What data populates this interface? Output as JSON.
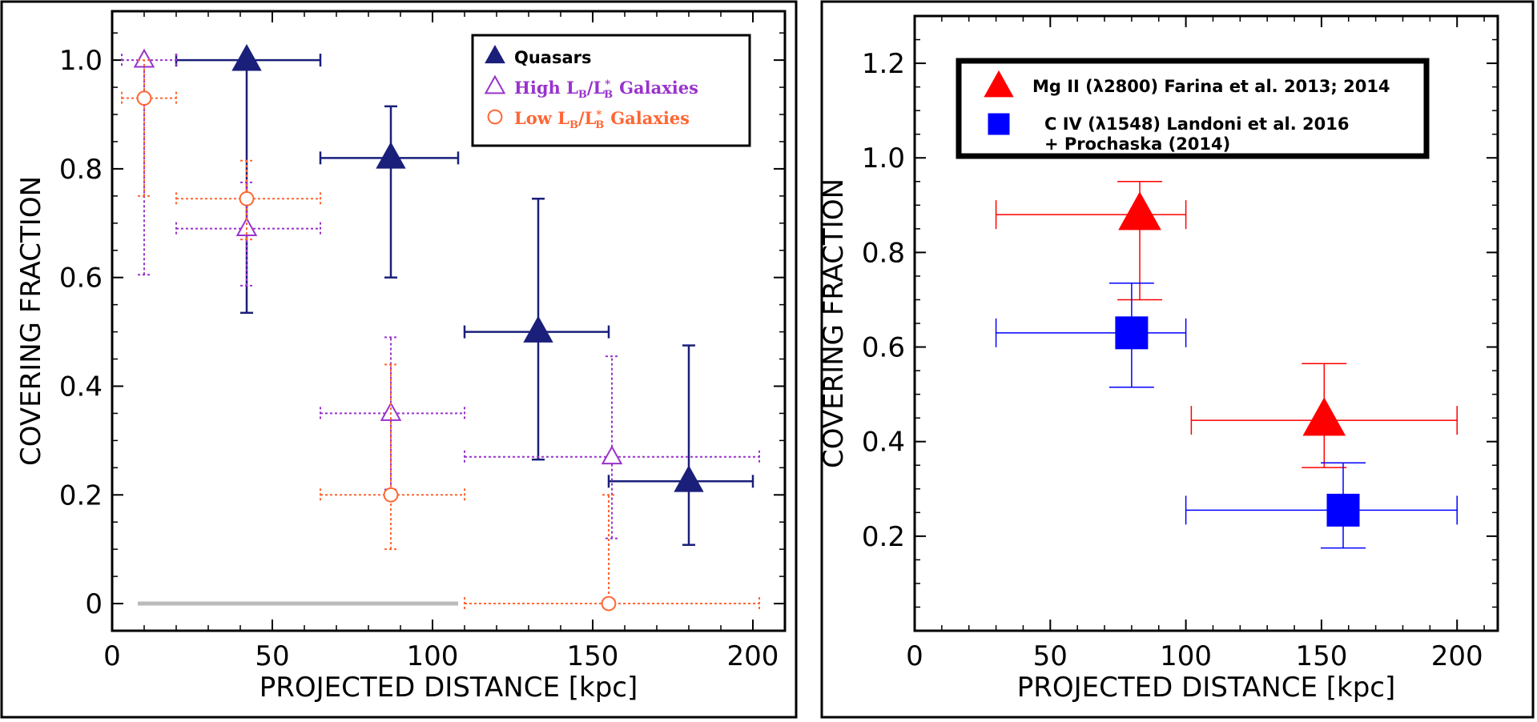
{
  "chart_data": [
    {
      "type": "scatter",
      "panel": "left",
      "xlabel": "PROJECTED DISTANCE [kpc]",
      "ylabel": "COVERING FRACTION",
      "xlim": [
        0,
        210
      ],
      "ylim": [
        -0.05,
        1.09
      ],
      "xticks": [
        0,
        50,
        100,
        150,
        200
      ],
      "xtick_labels": [
        "0",
        "50",
        "100",
        "150",
        "200"
      ],
      "yticks": [
        0,
        0.2,
        0.4,
        0.6,
        0.8,
        1.0
      ],
      "ytick_labels": [
        "0",
        "0.2",
        "0.4",
        "0.6",
        "0.8",
        "1.0"
      ],
      "legend_position": "top-right",
      "series": [
        {
          "name": "Quasars",
          "legend_label": "Quasars",
          "marker": "triangle-filled",
          "color": "#1a1f7a",
          "points": [
            {
              "x": 42,
              "y": 1.0,
              "xerr": [
                20,
                65
              ],
              "yerr": [
                0.535,
                1.0
              ]
            },
            {
              "x": 87,
              "y": 0.82,
              "xerr": [
                65,
                108
              ],
              "yerr": [
                0.6,
                0.915
              ]
            },
            {
              "x": 133,
              "y": 0.5,
              "xerr": [
                110,
                155
              ],
              "yerr": [
                0.265,
                0.745
              ]
            },
            {
              "x": 180,
              "y": 0.225,
              "xerr": [
                155,
                200
              ],
              "yerr": [
                0.108,
                0.475
              ]
            }
          ]
        },
        {
          "name": "High LB/L*B Galaxies",
          "legend_label": "High L",
          "legend_label_rest": "Galaxies",
          "marker": "triangle-open",
          "color": "#9933cc",
          "points": [
            {
              "x": 10,
              "y": 1.0,
              "xerr": [
                3,
                20
              ],
              "yerr": [
                0.605,
                1.0
              ]
            },
            {
              "x": 42,
              "y": 0.69,
              "xerr": [
                20,
                65
              ],
              "yerr": [
                0.585,
                0.775
              ]
            },
            {
              "x": 87,
              "y": 0.35,
              "xerr": [
                65,
                110
              ],
              "yerr": [
                0.21,
                0.49
              ]
            },
            {
              "x": 156,
              "y": 0.27,
              "xerr": [
                110,
                202
              ],
              "yerr": [
                0.12,
                0.455
              ]
            }
          ]
        },
        {
          "name": "Low LB/L*B Galaxies",
          "legend_label": "Low L",
          "legend_label_rest": "Galaxies",
          "marker": "circle-open",
          "color": "#ff6633",
          "points": [
            {
              "x": 10,
              "y": 0.93,
              "xerr": [
                3,
                20
              ],
              "yerr": [
                0.75,
                1.0
              ]
            },
            {
              "x": 42,
              "y": 0.745,
              "xerr": [
                20,
                65
              ],
              "yerr": [
                0.67,
                0.815
              ]
            },
            {
              "x": 87,
              "y": 0.2,
              "xerr": [
                65,
                110
              ],
              "yerr": [
                0.1,
                0.44
              ]
            },
            {
              "x": 155,
              "y": 0.0,
              "xerr": [
                110,
                202
              ],
              "yerr": [
                0.0,
                0.2
              ]
            }
          ]
        }
      ]
    },
    {
      "type": "scatter",
      "panel": "right",
      "xlabel": "PROJECTED DISTANCE [kpc]",
      "ylabel": "COVERING FRACTION",
      "xlim": [
        0,
        215
      ],
      "ylim": [
        0.0,
        1.3
      ],
      "xticks": [
        0,
        50,
        100,
        150,
        200
      ],
      "xtick_labels": [
        "0",
        "50",
        "100",
        "150",
        "200"
      ],
      "yticks": [
        0.2,
        0.4,
        0.6,
        0.8,
        1.0,
        1.2
      ],
      "ytick_labels": [
        "0.2",
        "0.4",
        "0.6",
        "0.8",
        "1.0",
        "1.2"
      ],
      "legend_position": "top",
      "series": [
        {
          "name": "Mg II (λ2800) Farina et al. 2013; 2014",
          "legend_lines": [
            "Mg II (λ2800) Farina et al. 2013; 2014"
          ],
          "marker": "triangle-filled",
          "color": "#ff0000",
          "points": [
            {
              "x": 83,
              "y": 0.88,
              "xerr": [
                30,
                100
              ],
              "yerr": [
                0.7,
                0.95
              ]
            },
            {
              "x": 151,
              "y": 0.445,
              "xerr": [
                102,
                200
              ],
              "yerr": [
                0.345,
                0.565
              ]
            }
          ]
        },
        {
          "name": "C IV (λ1548) Landoni et al. 2016 + Prochaska (2014)",
          "legend_lines": [
            "C IV (λ1548) Landoni et al. 2016",
            "+ Prochaska (2014)"
          ],
          "marker": "square-filled",
          "color": "#0000ff",
          "points": [
            {
              "x": 80,
              "y": 0.63,
              "xerr": [
                30,
                100
              ],
              "yerr": [
                0.515,
                0.735
              ]
            },
            {
              "x": 158,
              "y": 0.255,
              "xerr": [
                100,
                200
              ],
              "yerr": [
                0.175,
                0.355
              ]
            }
          ]
        }
      ]
    }
  ]
}
